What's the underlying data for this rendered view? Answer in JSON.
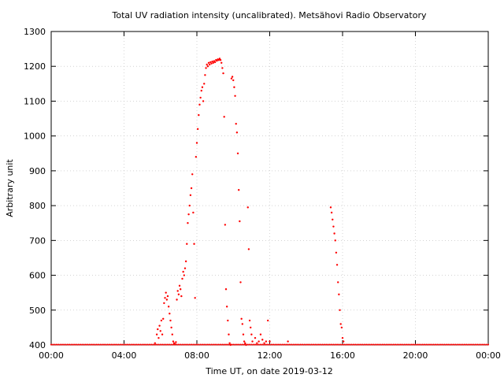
{
  "chart_data": {
    "type": "scatter",
    "title": "Total UV radiation intensity (uncalibrated). Metsähovi Radio Observatory",
    "xlabel": "Time UT, on date 2019-03-12",
    "ylabel": "Arbitrary unit",
    "x_unit": "hours UT",
    "xlim": [
      0,
      24
    ],
    "ylim": [
      400,
      1300
    ],
    "x_ticks": [
      {
        "value": 0,
        "label": "00:00"
      },
      {
        "value": 4,
        "label": "04:00"
      },
      {
        "value": 8,
        "label": "08:00"
      },
      {
        "value": 12,
        "label": "12:00"
      },
      {
        "value": 16,
        "label": "16:00"
      },
      {
        "value": 20,
        "label": "20:00"
      },
      {
        "value": 24,
        "label": "00:00"
      }
    ],
    "y_ticks": [
      400,
      500,
      600,
      700,
      800,
      900,
      1000,
      1100,
      1200,
      1300
    ],
    "grid": true,
    "point_color": "#ff0000",
    "baseline": {
      "y": 401,
      "x_from": 0,
      "x_to": 24,
      "step": 0.1
    },
    "series": [
      {
        "points": [
          [
            5.7,
            405
          ],
          [
            5.8,
            430
          ],
          [
            5.85,
            445
          ],
          [
            5.9,
            420
          ],
          [
            5.95,
            455
          ],
          [
            6.0,
            440
          ],
          [
            6.05,
            470
          ],
          [
            6.1,
            430
          ],
          [
            6.15,
            475
          ],
          [
            6.2,
            520
          ],
          [
            6.25,
            535
          ],
          [
            6.3,
            550
          ],
          [
            6.35,
            530
          ],
          [
            6.4,
            540
          ],
          [
            6.45,
            510
          ],
          [
            6.5,
            490
          ],
          [
            6.55,
            470
          ],
          [
            6.6,
            450
          ],
          [
            6.65,
            430
          ],
          [
            6.7,
            410
          ],
          [
            6.75,
            405
          ],
          [
            6.8,
            403
          ],
          [
            6.85,
            408
          ],
          [
            6.9,
            530
          ],
          [
            6.95,
            555
          ],
          [
            7.0,
            545
          ],
          [
            7.05,
            570
          ],
          [
            7.1,
            560
          ],
          [
            7.15,
            540
          ],
          [
            7.2,
            590
          ],
          [
            7.25,
            610
          ],
          [
            7.3,
            600
          ],
          [
            7.35,
            620
          ],
          [
            7.4,
            640
          ],
          [
            7.45,
            690
          ],
          [
            7.5,
            750
          ],
          [
            7.55,
            775
          ],
          [
            7.6,
            800
          ],
          [
            7.65,
            830
          ],
          [
            7.7,
            850
          ],
          [
            7.75,
            890
          ],
          [
            7.8,
            780
          ],
          [
            7.85,
            690
          ],
          [
            7.9,
            535
          ],
          [
            7.95,
            940
          ],
          [
            8.0,
            980
          ],
          [
            8.05,
            1020
          ],
          [
            8.1,
            1060
          ],
          [
            8.15,
            1090
          ],
          [
            8.2,
            1110
          ],
          [
            8.25,
            1130
          ],
          [
            8.3,
            1140
          ],
          [
            8.35,
            1100
          ],
          [
            8.4,
            1150
          ],
          [
            8.45,
            1175
          ],
          [
            8.5,
            1195
          ],
          [
            8.55,
            1205
          ],
          [
            8.6,
            1200
          ],
          [
            8.65,
            1210
          ],
          [
            8.7,
            1205
          ],
          [
            8.75,
            1212
          ],
          [
            8.8,
            1208
          ],
          [
            8.85,
            1214
          ],
          [
            8.9,
            1210
          ],
          [
            8.95,
            1215
          ],
          [
            9.0,
            1212
          ],
          [
            9.05,
            1218
          ],
          [
            9.1,
            1216
          ],
          [
            9.15,
            1220
          ],
          [
            9.2,
            1218
          ],
          [
            9.25,
            1222
          ],
          [
            9.3,
            1218
          ],
          [
            9.35,
            1210
          ],
          [
            9.4,
            1195
          ],
          [
            9.45,
            1180
          ],
          [
            9.5,
            1055
          ],
          [
            9.55,
            745
          ],
          [
            9.6,
            560
          ],
          [
            9.65,
            510
          ],
          [
            9.7,
            470
          ],
          [
            9.75,
            430
          ],
          [
            9.8,
            405
          ],
          [
            9.85,
            400
          ],
          [
            9.9,
            1165
          ],
          [
            9.95,
            1170
          ],
          [
            10.0,
            1160
          ],
          [
            10.05,
            1140
          ],
          [
            10.1,
            1115
          ],
          [
            10.15,
            1035
          ],
          [
            10.2,
            1010
          ],
          [
            10.25,
            950
          ],
          [
            10.3,
            845
          ],
          [
            10.35,
            755
          ],
          [
            10.4,
            580
          ],
          [
            10.45,
            475
          ],
          [
            10.5,
            460
          ],
          [
            10.55,
            430
          ],
          [
            10.6,
            410
          ],
          [
            10.65,
            405
          ],
          [
            10.7,
            400
          ],
          [
            10.8,
            795
          ],
          [
            10.85,
            675
          ],
          [
            10.9,
            470
          ],
          [
            10.95,
            450
          ],
          [
            11.0,
            430
          ],
          [
            11.05,
            410
          ],
          [
            11.2,
            420
          ],
          [
            11.3,
            405
          ],
          [
            11.4,
            410
          ],
          [
            11.5,
            430
          ],
          [
            11.6,
            415
          ],
          [
            11.7,
            405
          ],
          [
            11.8,
            410
          ],
          [
            11.9,
            470
          ],
          [
            12.0,
            410
          ],
          [
            13.0,
            410
          ],
          [
            15.35,
            795
          ],
          [
            15.4,
            780
          ],
          [
            15.45,
            760
          ],
          [
            15.5,
            740
          ],
          [
            15.55,
            720
          ],
          [
            15.6,
            700
          ],
          [
            15.65,
            665
          ],
          [
            15.7,
            630
          ],
          [
            15.75,
            580
          ],
          [
            15.8,
            545
          ],
          [
            15.85,
            500
          ],
          [
            15.9,
            460
          ],
          [
            15.95,
            450
          ],
          [
            16.0,
            420
          ],
          [
            16.05,
            410
          ]
        ]
      }
    ]
  }
}
